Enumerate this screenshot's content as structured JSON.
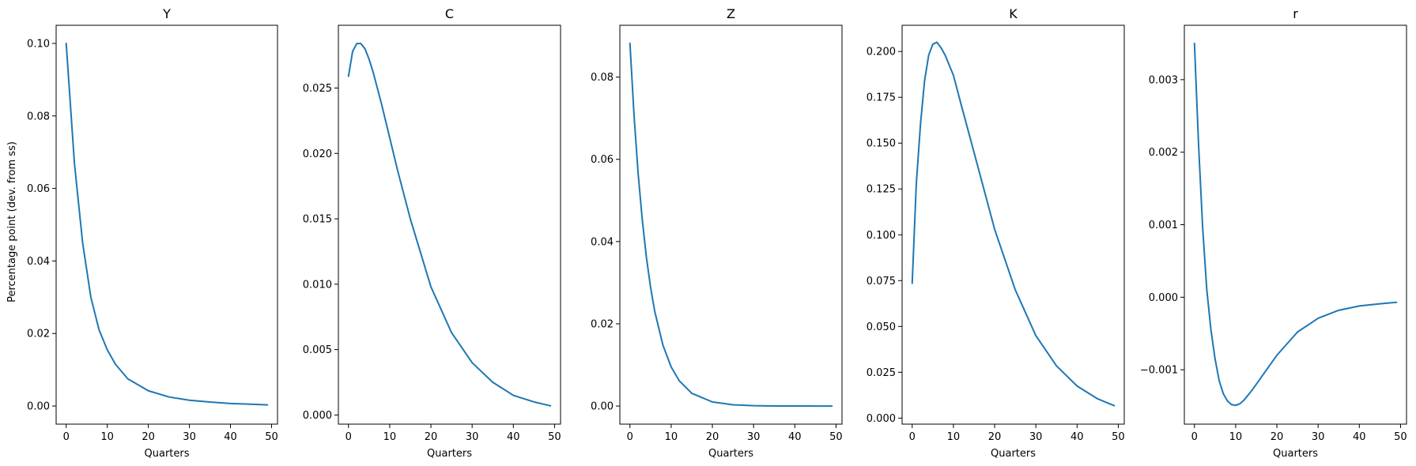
{
  "figure": {
    "ylabel": "Percentage point (dev. from ss)"
  },
  "chart_data": [
    {
      "type": "line",
      "title": "Y",
      "xlabel": "Quarters",
      "ylabel": "Percentage point (dev. from ss)",
      "xlim": [
        -2.45,
        51.45
      ],
      "ylim": [
        -0.005,
        0.105
      ],
      "xticks": [
        0,
        10,
        20,
        30,
        40,
        50
      ],
      "xtick_labels": [
        "0",
        "10",
        "20",
        "30",
        "40",
        "50"
      ],
      "yticks": [
        0.0,
        0.02,
        0.04,
        0.06,
        0.08,
        0.1
      ],
      "ytick_labels": [
        "0.00",
        "0.02",
        "0.04",
        "0.06",
        "0.08",
        "0.10"
      ],
      "color": "#1f77b4",
      "series": [
        {
          "x": [
            0,
            2,
            4,
            6,
            8,
            10,
            12,
            15,
            20,
            25,
            30,
            35,
            40,
            45,
            49
          ],
          "y": [
            0.1,
            0.067,
            0.045,
            0.03,
            0.021,
            0.0155,
            0.0115,
            0.0075,
            0.0042,
            0.0025,
            0.0016,
            0.0011,
            0.0007,
            0.0005,
            0.0003
          ]
        }
      ]
    },
    {
      "type": "line",
      "title": "C",
      "xlabel": "Quarters",
      "ylabel": "",
      "xlim": [
        -2.45,
        51.45
      ],
      "ylim": [
        -0.0007,
        0.0298
      ],
      "xticks": [
        0,
        10,
        20,
        30,
        40,
        50
      ],
      "xtick_labels": [
        "0",
        "10",
        "20",
        "30",
        "40",
        "50"
      ],
      "yticks": [
        0.0,
        0.005,
        0.01,
        0.015,
        0.02,
        0.025
      ],
      "ytick_labels": [
        "0.000",
        "0.005",
        "0.010",
        "0.015",
        "0.020",
        "0.025"
      ],
      "color": "#1f77b4",
      "series": [
        {
          "x": [
            0,
            1,
            2,
            3,
            4,
            5,
            6,
            8,
            10,
            12,
            15,
            20,
            25,
            30,
            35,
            40,
            45,
            49
          ],
          "y": [
            0.0259,
            0.0278,
            0.0284,
            0.0284,
            0.028,
            0.0272,
            0.0262,
            0.0238,
            0.0212,
            0.0186,
            0.015,
            0.0098,
            0.0063,
            0.004,
            0.0025,
            0.0015,
            0.001,
            0.0007
          ]
        }
      ]
    },
    {
      "type": "line",
      "title": "Z",
      "xlabel": "Quarters",
      "ylabel": "",
      "xlim": [
        -2.45,
        51.45
      ],
      "ylim": [
        -0.0044,
        0.0926
      ],
      "xticks": [
        0,
        10,
        20,
        30,
        40,
        50
      ],
      "xtick_labels": [
        "0",
        "10",
        "20",
        "30",
        "40",
        "50"
      ],
      "yticks": [
        0.0,
        0.02,
        0.04,
        0.06,
        0.08
      ],
      "ytick_labels": [
        "0.00",
        "0.02",
        "0.04",
        "0.06",
        "0.08"
      ],
      "color": "#1f77b4",
      "series": [
        {
          "x": [
            0,
            1,
            2,
            3,
            4,
            5,
            6,
            8,
            10,
            12,
            15,
            20,
            25,
            30,
            35,
            40,
            45,
            49
          ],
          "y": [
            0.0882,
            0.0706,
            0.0564,
            0.0452,
            0.0361,
            0.0289,
            0.0231,
            0.0148,
            0.0095,
            0.0061,
            0.0031,
            0.001,
            0.0003,
            0.0001,
            3e-05,
            1e-05,
            0.0,
            0.0
          ]
        }
      ]
    },
    {
      "type": "line",
      "title": "K",
      "xlabel": "Quarters",
      "ylabel": "",
      "xlim": [
        -2.45,
        51.45
      ],
      "ylim": [
        -0.0033,
        0.2143
      ],
      "xticks": [
        0,
        10,
        20,
        30,
        40,
        50
      ],
      "xtick_labels": [
        "0",
        "10",
        "20",
        "30",
        "40",
        "50"
      ],
      "yticks": [
        0.0,
        0.025,
        0.05,
        0.075,
        0.1,
        0.125,
        0.15,
        0.175,
        0.2
      ],
      "ytick_labels": [
        "0.000",
        "0.025",
        "0.050",
        "0.075",
        "0.100",
        "0.125",
        "0.150",
        "0.175",
        "0.200"
      ],
      "color": "#1f77b4",
      "series": [
        {
          "x": [
            0,
            1,
            2,
            3,
            4,
            5,
            6,
            7,
            8,
            10,
            12,
            15,
            20,
            25,
            30,
            35,
            40,
            45,
            49
          ],
          "y": [
            0.0735,
            0.128,
            0.16,
            0.184,
            0.198,
            0.204,
            0.205,
            0.202,
            0.198,
            0.187,
            0.17,
            0.145,
            0.103,
            0.07,
            0.045,
            0.0285,
            0.0175,
            0.0105,
            0.0068
          ]
        }
      ]
    },
    {
      "type": "line",
      "title": "r",
      "xlabel": "Quarters",
      "ylabel": "",
      "xlim": [
        -2.45,
        51.45
      ],
      "ylim": [
        -0.00175,
        0.00375
      ],
      "xticks": [
        0,
        10,
        20,
        30,
        40,
        50
      ],
      "xtick_labels": [
        "0",
        "10",
        "20",
        "30",
        "40",
        "50"
      ],
      "yticks": [
        -0.001,
        0.0,
        0.001,
        0.002,
        0.003
      ],
      "ytick_labels": [
        "−0.001",
        "0.000",
        "0.001",
        "0.002",
        "0.003"
      ],
      "color": "#1f77b4",
      "series": [
        {
          "x": [
            0,
            1,
            2,
            3,
            4,
            5,
            6,
            7,
            8,
            9,
            10,
            11,
            12,
            14,
            16,
            18,
            20,
            25,
            30,
            35,
            40,
            45,
            49
          ],
          "y": [
            0.0035,
            0.0021,
            0.00095,
            0.0001,
            -0.00045,
            -0.00085,
            -0.00115,
            -0.00133,
            -0.00143,
            -0.00148,
            -0.00149,
            -0.00147,
            -0.00142,
            -0.00128,
            -0.00112,
            -0.00096,
            -0.0008,
            -0.00048,
            -0.00029,
            -0.00018,
            -0.00012,
            -9e-05,
            -7e-05
          ]
        }
      ]
    }
  ]
}
